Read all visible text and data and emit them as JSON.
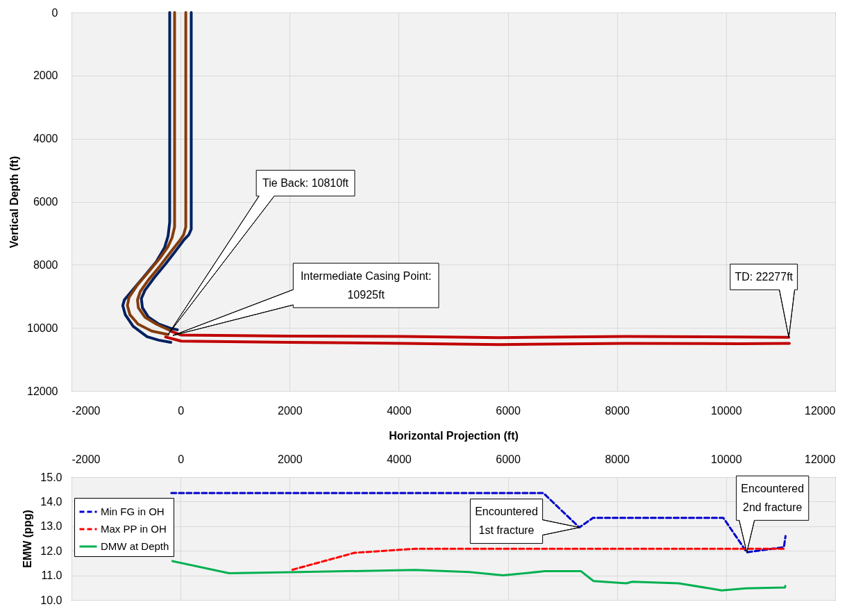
{
  "chart_data": [
    {
      "type": "line",
      "xlabel": "Horizontal Projection (ft)",
      "ylabel": "Vertical Depth (ft)",
      "xlim": [
        -2000,
        12000
      ],
      "xticks": [
        -2000,
        0,
        2000,
        4000,
        6000,
        8000,
        10000,
        12000
      ],
      "ylim": [
        12000,
        0
      ],
      "yticks": [
        0,
        2000,
        4000,
        6000,
        8000,
        10000,
        12000
      ],
      "grid": true,
      "series": [
        {
          "color": "#002060",
          "x": [
            -200,
            -200,
            -230,
            -295,
            -445,
            -655,
            -870,
            -1030,
            -1060,
            -1015,
            -870,
            -615,
            -400,
            -180
          ],
          "values": [
            0,
            6650,
            7090,
            7460,
            7900,
            8340,
            8780,
            9110,
            9290,
            9580,
            9950,
            10280,
            10390,
            10460
          ]
        },
        {
          "color": "#002060",
          "x": [
            195,
            195,
            150,
            65,
            -60,
            -275,
            -485,
            -655,
            -720,
            -700,
            -590,
            -400,
            -190,
            -60
          ],
          "values": [
            0,
            6870,
            7050,
            7200,
            7490,
            7970,
            8410,
            8810,
            9070,
            9360,
            9660,
            9880,
            10010,
            10060
          ]
        },
        {
          "color": "#843c0c",
          "x": [
            -110,
            -110,
            -155,
            -230,
            -380,
            -590,
            -805,
            -945,
            -975,
            -930,
            -780,
            -530,
            -230
          ],
          "values": [
            0,
            6800,
            7130,
            7420,
            7790,
            8230,
            8670,
            9030,
            9290,
            9580,
            9880,
            10100,
            10210
          ]
        },
        {
          "color": "#843c0c",
          "x": [
            95,
            95,
            55,
            -20,
            -170,
            -380,
            -590,
            -740,
            -790,
            -775,
            -655,
            -445,
            -170
          ],
          "values": [
            0,
            6800,
            7050,
            7240,
            7570,
            8040,
            8480,
            8850,
            9110,
            9360,
            9660,
            9880,
            10100
          ]
        },
        {
          "color": "#c00000",
          "x": [
            -170,
            15,
            2000,
            4080,
            5840,
            8150,
            10220,
            11150
          ],
          "values": [
            10110,
            10230,
            10260,
            10270,
            10310,
            10270,
            10290,
            10300
          ]
        },
        {
          "color": "#c00000",
          "x": [
            -275,
            15,
            2000,
            4080,
            5840,
            8150,
            10220,
            11160
          ],
          "values": [
            10290,
            10420,
            10460,
            10490,
            10530,
            10490,
            10500,
            10490
          ]
        }
      ],
      "annotations": [
        {
          "text": "Tie Back: 10810ft",
          "x": -230,
          "y": 10210
        },
        {
          "text": "Intermediate Casing Point:\n10925ft",
          "x": -140,
          "y": 10240
        },
        {
          "text": "TD: 22277ft",
          "x": 11150,
          "y": 10300
        }
      ]
    },
    {
      "type": "line",
      "ylabel": "EMW (ppg)",
      "xlim": [
        -2000,
        12000
      ],
      "xticks": [
        -2000,
        0,
        2000,
        4000,
        6000,
        8000,
        10000,
        12000
      ],
      "ylim": [
        10,
        15
      ],
      "yticks": [
        {
          "value": 10,
          "label": "10.0"
        },
        {
          "value": 11,
          "label": "11.0"
        },
        {
          "value": 12,
          "label": "12.0"
        },
        {
          "value": 13,
          "label": "13.0"
        },
        {
          "value": 14,
          "label": "14.0"
        },
        {
          "value": 15,
          "label": "15.0"
        }
      ],
      "grid": true,
      "legend": "top left",
      "series": [
        {
          "name": "Min FG in OH",
          "color": "#0000cc",
          "line_style": "dashed",
          "x": [
            -170,
            6650,
            7310,
            7560,
            9950,
            10380,
            11060,
            11090
          ],
          "values": [
            14.35,
            14.35,
            12.95,
            13.34,
            13.34,
            11.94,
            12.15,
            12.6
          ]
        },
        {
          "name": "Max PP in OH",
          "color": "#ff0000",
          "line_style": "dashed",
          "x": [
            2050,
            3190,
            4000,
            4300,
            11080
          ],
          "values": [
            11.23,
            11.92,
            12.04,
            12.08,
            12.08
          ]
        },
        {
          "name": "DMW at Depth",
          "color": "#00b050",
          "line_style": "solid",
          "x": [
            -150,
            890,
            2010,
            4300,
            5290,
            5910,
            6680,
            7340,
            7570,
            8170,
            8280,
            9130,
            9920,
            10360,
            11080,
            11085
          ],
          "values": [
            11.58,
            11.09,
            11.13,
            11.22,
            11.14,
            11.0,
            11.17,
            11.17,
            10.77,
            10.68,
            10.74,
            10.68,
            10.39,
            10.47,
            10.51,
            10.57
          ]
        }
      ],
      "annotations": [
        {
          "text": "Encountered\n1st fracture",
          "x": 7310,
          "y": 12.95
        },
        {
          "text": "Encountered\n2nd fracture",
          "x": 10380,
          "y": 11.94
        }
      ]
    }
  ]
}
